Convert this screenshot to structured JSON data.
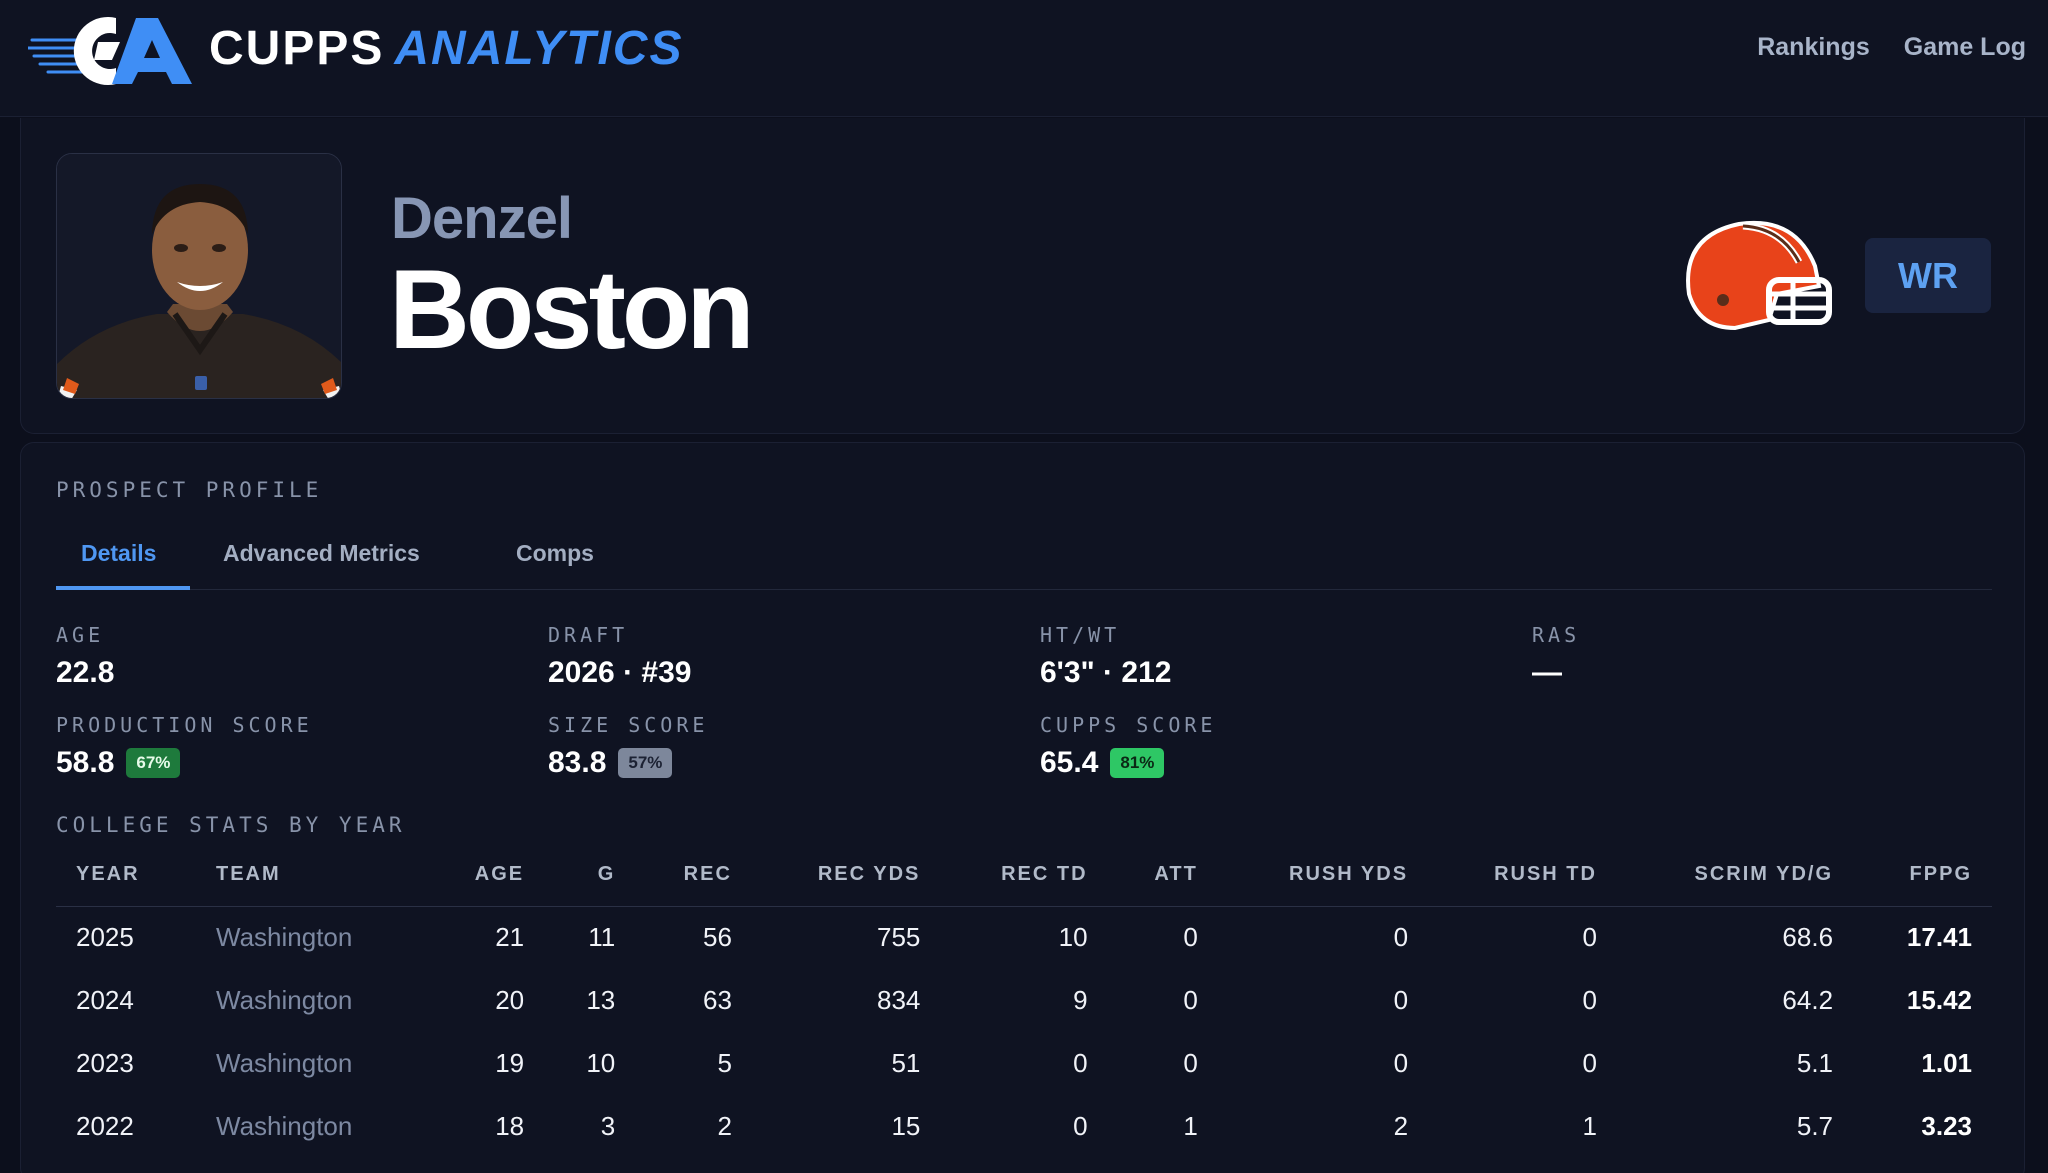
{
  "header": {
    "brand_primary": "CUPPS",
    "brand_secondary": "ANALYTICS",
    "nav": [
      {
        "label": "Rankings"
      },
      {
        "label": "Game Log"
      }
    ]
  },
  "player": {
    "first_name": "Denzel",
    "last_name": "Boston",
    "position": "WR",
    "team_logo_icon": "browns-helmet-icon"
  },
  "profile": {
    "section_title": "PROSPECT PROFILE",
    "tabs": [
      {
        "label": "Details",
        "active": true
      },
      {
        "label": "Advanced Metrics",
        "active": false
      },
      {
        "label": "Comps",
        "active": false
      }
    ],
    "stats": {
      "age": {
        "label": "AGE",
        "value": "22.8"
      },
      "draft": {
        "label": "DRAFT",
        "value": "2026 · #39"
      },
      "htwt": {
        "label": "HT/WT",
        "value": "6'3\" · 212"
      },
      "ras": {
        "label": "RAS",
        "value": "—"
      },
      "production": {
        "label": "PRODUCTION SCORE",
        "value": "58.8",
        "pct": "67%"
      },
      "size": {
        "label": "SIZE SCORE",
        "value": "83.8",
        "pct": "57%"
      },
      "cupps": {
        "label": "CUPPS SCORE",
        "value": "65.4",
        "pct": "81%"
      }
    },
    "college_title": "COLLEGE STATS BY YEAR",
    "table": {
      "columns": [
        "YEAR",
        "TEAM",
        "AGE",
        "G",
        "REC",
        "REC YDS",
        "REC TD",
        "ATT",
        "RUSH YDS",
        "RUSH TD",
        "SCRIM YD/G",
        "FPPG"
      ],
      "rows": [
        [
          "2025",
          "Washington",
          "21",
          "11",
          "56",
          "755",
          "10",
          "0",
          "0",
          "0",
          "68.6",
          "17.41"
        ],
        [
          "2024",
          "Washington",
          "20",
          "13",
          "63",
          "834",
          "9",
          "0",
          "0",
          "0",
          "64.2",
          "15.42"
        ],
        [
          "2023",
          "Washington",
          "19",
          "10",
          "5",
          "51",
          "0",
          "0",
          "0",
          "0",
          "5.1",
          "1.01"
        ],
        [
          "2022",
          "Washington",
          "18",
          "3",
          "2",
          "15",
          "0",
          "1",
          "2",
          "1",
          "5.7",
          "3.23"
        ]
      ]
    }
  },
  "colors": {
    "background": "#0c0f1c",
    "panel": "#0f1322",
    "accent": "#4f97f2",
    "browns_orange": "#e8431a"
  }
}
